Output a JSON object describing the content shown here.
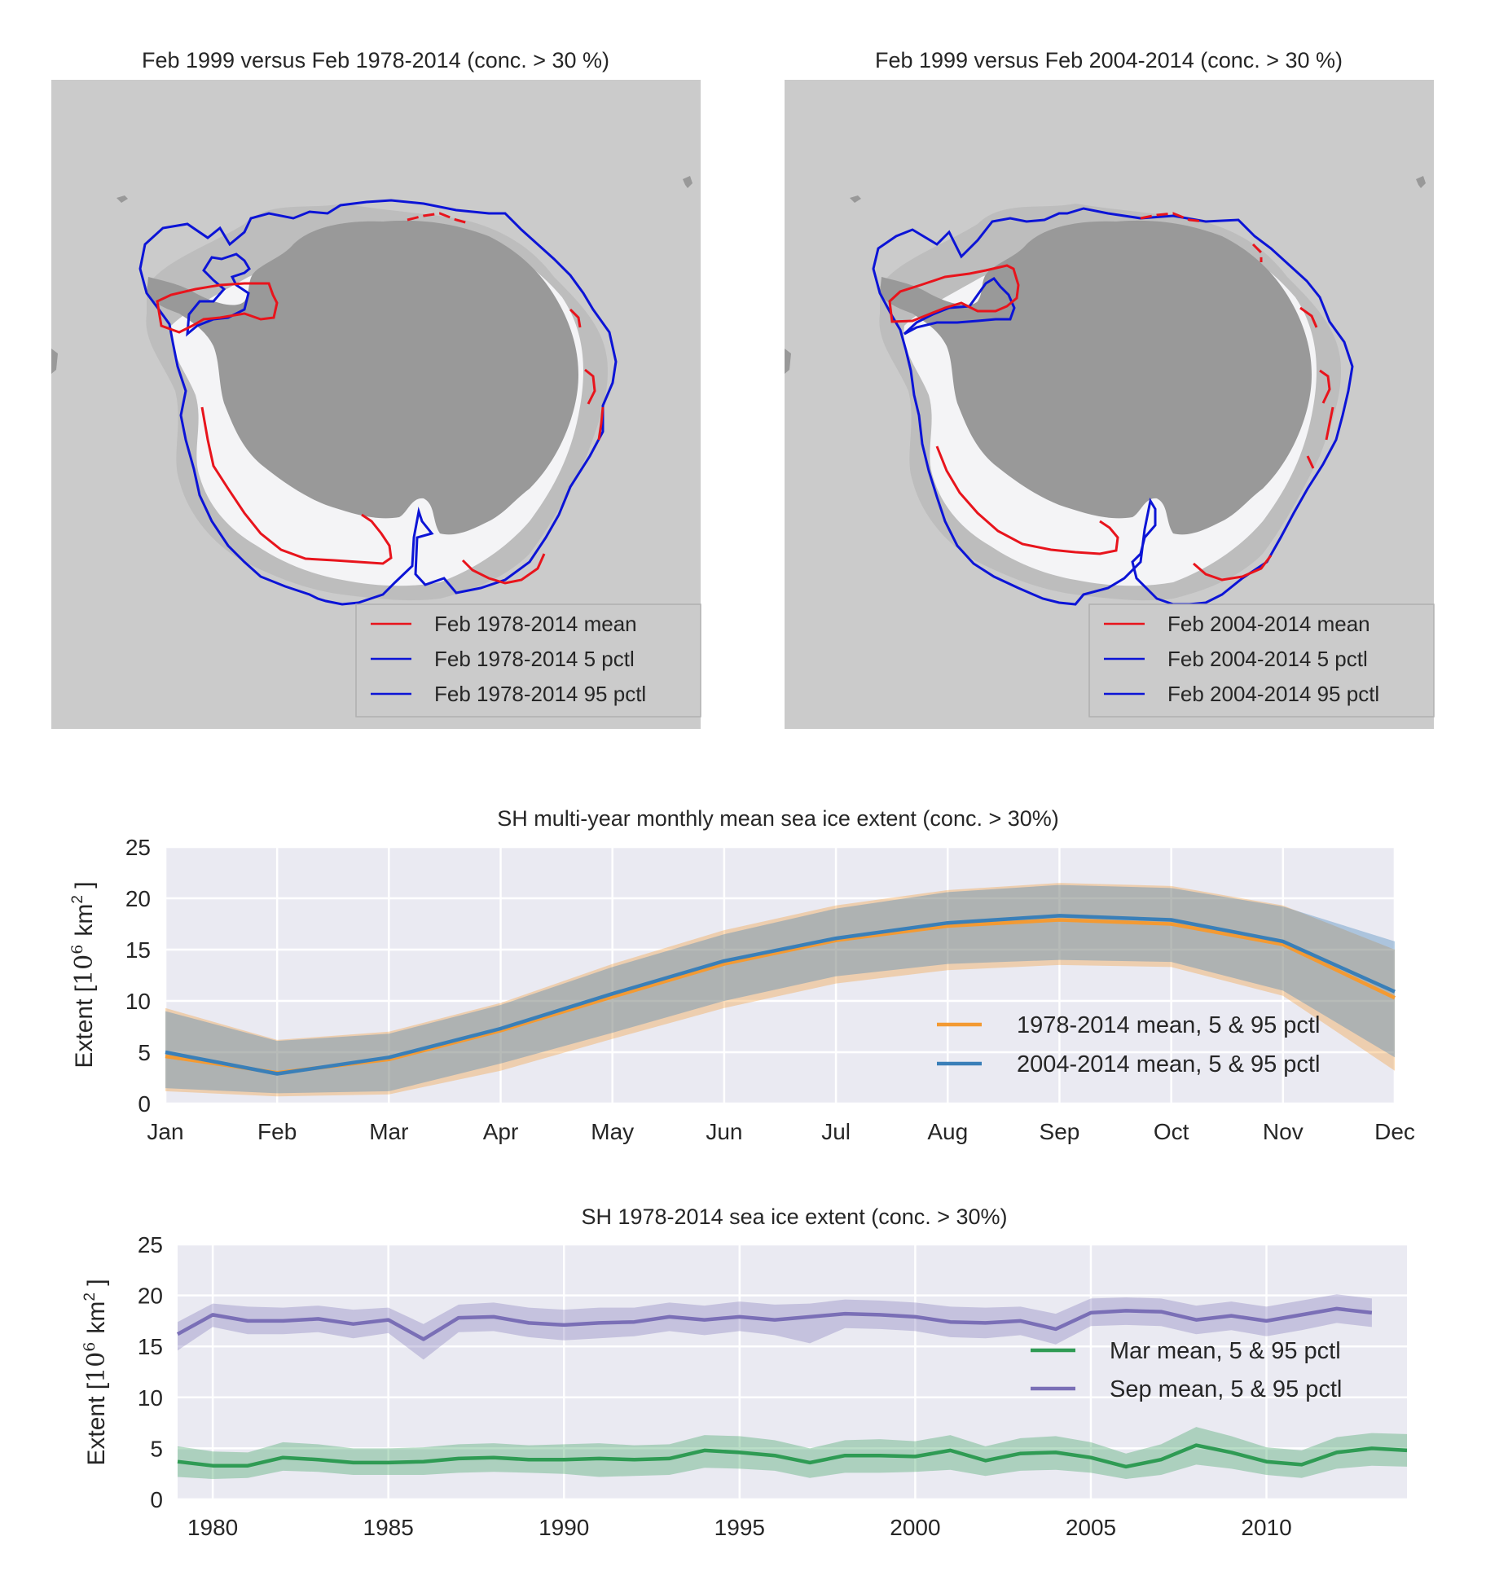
{
  "colors": {
    "ocean": "#cbcbcb",
    "land": "#999999",
    "ice": "#f4f4f6",
    "ice_low": "#bdbdbd",
    "mean_contour": "#e8141c",
    "pctl_contour": "#0c14d6",
    "axes_bg": "#eaeaf2",
    "grid": "#ffffff",
    "orange": "#f39a33",
    "blue": "#3a7fb8",
    "green": "#2f9b54",
    "purple": "#7a6fb6"
  },
  "maps": [
    {
      "title": "Feb 1999 versus Feb 1978-2014 (conc. > 30 %)",
      "legend": [
        {
          "label": "Feb 1978-2014 mean",
          "color": "#e8141c"
        },
        {
          "label": "Feb 1978-2014 5 pctl",
          "color": "#0c14d6"
        },
        {
          "label": "Feb 1978-2014 95 pctl",
          "color": "#0c14d6"
        }
      ]
    },
    {
      "title": "Feb 1999 versus Feb 2004-2014 (conc. > 30 %)",
      "legend": [
        {
          "label": "Feb 2004-2014 mean",
          "color": "#e8141c"
        },
        {
          "label": "Feb 2004-2014 5 pctl",
          "color": "#0c14d6"
        },
        {
          "label": "Feb 2004-2014 95 pctl",
          "color": "#0c14d6"
        }
      ]
    }
  ],
  "chart_data": [
    {
      "type": "area",
      "title": "SH multi-year monthly mean sea ice extent (conc. > 30%)",
      "ylabel": "Extent [10^6 km^2 ]",
      "ylabel_parts": {
        "prefix": "Extent [",
        "base": "10",
        "exp1": "6",
        "unit": "km",
        "exp2": "2",
        "suffix": " ]"
      },
      "ylim": [
        0,
        25
      ],
      "yticks": [
        0,
        5,
        10,
        15,
        20,
        25
      ],
      "categories": [
        "Jan",
        "Feb",
        "Mar",
        "Apr",
        "May",
        "Jun",
        "Jul",
        "Aug",
        "Sep",
        "Oct",
        "Nov",
        "Dec"
      ],
      "grid": true,
      "legend_position": "lower-right",
      "series": [
        {
          "name": "1978-2014 mean, 5 & 95 pctl",
          "color": "#f39a33",
          "mean": [
            4.6,
            3.0,
            4.3,
            7.1,
            10.4,
            13.6,
            15.9,
            17.3,
            17.9,
            17.5,
            15.5,
            10.3
          ],
          "p5": [
            1.2,
            0.7,
            0.9,
            3.2,
            6.3,
            9.3,
            11.7,
            13.0,
            13.5,
            13.3,
            10.5,
            3.2
          ],
          "p95": [
            9.3,
            6.2,
            7.0,
            9.8,
            13.6,
            16.9,
            19.3,
            20.8,
            21.5,
            21.2,
            19.3,
            15.0
          ]
        },
        {
          "name": "2004-2014 mean, 5 & 95 pctl",
          "color": "#3a7fb8",
          "mean": [
            5.0,
            2.9,
            4.5,
            7.3,
            10.7,
            13.9,
            16.1,
            17.6,
            18.3,
            17.9,
            15.8,
            10.9
          ],
          "p5": [
            1.5,
            1.0,
            1.2,
            3.9,
            6.9,
            10.0,
            12.4,
            13.6,
            14.0,
            13.8,
            11.0,
            4.5
          ],
          "p95": [
            9.0,
            6.1,
            6.8,
            9.6,
            13.3,
            16.5,
            19.0,
            20.6,
            21.3,
            21.0,
            19.2,
            15.8
          ]
        }
      ]
    },
    {
      "type": "area",
      "title": "SH 1978-2014 sea ice extent (conc. > 30%)",
      "ylabel": "Extent [10^6 km^2 ]",
      "ylabel_parts": {
        "prefix": "Extent [",
        "base": "10",
        "exp1": "6",
        "unit": "km",
        "exp2": "2",
        "suffix": " ]"
      },
      "ylim": [
        0,
        25
      ],
      "yticks": [
        0,
        5,
        10,
        15,
        20,
        25
      ],
      "xlim": [
        1979,
        2014
      ],
      "xticks": [
        1980,
        1985,
        1990,
        1995,
        2000,
        2005,
        2010
      ],
      "grid": true,
      "legend_position": "right",
      "series": [
        {
          "name": "Mar mean, 5 & 95 pctl",
          "color": "#2f9b54",
          "x": [
            1979,
            1980,
            1981,
            1982,
            1983,
            1984,
            1985,
            1986,
            1987,
            1988,
            1989,
            1990,
            1991,
            1992,
            1993,
            1994,
            1995,
            1996,
            1997,
            1998,
            1999,
            2000,
            2001,
            2002,
            2003,
            2004,
            2005,
            2006,
            2007,
            2008,
            2009,
            2010,
            2011,
            2012,
            2013,
            2014
          ],
          "mean": [
            3.7,
            3.3,
            3.3,
            4.1,
            3.9,
            3.6,
            3.6,
            3.7,
            4.0,
            4.1,
            3.9,
            3.9,
            4.0,
            3.9,
            4.0,
            4.8,
            4.6,
            4.3,
            3.6,
            4.3,
            4.3,
            4.2,
            4.8,
            3.8,
            4.5,
            4.6,
            4.1,
            3.2,
            3.9,
            5.3,
            4.6,
            3.7,
            3.4,
            4.6,
            5.0,
            4.8
          ],
          "p5": [
            2.2,
            2.0,
            2.1,
            2.8,
            2.7,
            2.4,
            2.4,
            2.4,
            2.6,
            2.7,
            2.6,
            2.5,
            2.2,
            2.3,
            2.4,
            3.1,
            3.0,
            2.8,
            2.1,
            2.6,
            2.6,
            2.7,
            2.9,
            2.3,
            2.8,
            2.9,
            2.6,
            2.0,
            2.4,
            3.4,
            3.0,
            2.4,
            2.1,
            3.0,
            3.3,
            3.2
          ],
          "p95": [
            5.2,
            4.7,
            4.6,
            5.6,
            5.4,
            5.0,
            5.0,
            5.1,
            5.4,
            5.5,
            5.3,
            5.4,
            5.5,
            5.3,
            5.4,
            6.3,
            6.2,
            5.8,
            5.0,
            5.8,
            5.9,
            5.7,
            6.3,
            5.2,
            6.0,
            6.2,
            5.6,
            4.5,
            5.4,
            7.1,
            6.2,
            5.1,
            4.8,
            6.1,
            6.5,
            6.4
          ]
        },
        {
          "name": "Sep mean, 5 & 95 pctl",
          "color": "#7a6fb6",
          "x": [
            1979,
            1980,
            1981,
            1982,
            1983,
            1984,
            1985,
            1986,
            1987,
            1988,
            1989,
            1990,
            1991,
            1992,
            1993,
            1994,
            1995,
            1996,
            1997,
            1998,
            1999,
            2000,
            2001,
            2002,
            2003,
            2004,
            2005,
            2006,
            2007,
            2008,
            2009,
            2010,
            2011,
            2012,
            2013
          ],
          "mean": [
            16.2,
            18.1,
            17.5,
            17.5,
            17.7,
            17.2,
            17.6,
            15.7,
            17.8,
            17.9,
            17.3,
            17.1,
            17.3,
            17.4,
            17.9,
            17.6,
            17.9,
            17.6,
            17.9,
            18.2,
            18.1,
            17.9,
            17.4,
            17.3,
            17.5,
            16.7,
            18.3,
            18.5,
            18.4,
            17.6,
            18.0,
            17.5,
            18.1,
            18.7,
            18.3
          ],
          "p5": [
            14.6,
            16.9,
            16.2,
            16.2,
            16.4,
            15.8,
            16.3,
            13.7,
            16.4,
            16.5,
            15.9,
            15.6,
            15.8,
            16.0,
            16.5,
            16.1,
            16.5,
            16.1,
            15.3,
            16.8,
            16.7,
            16.5,
            15.9,
            15.8,
            16.1,
            15.2,
            17.0,
            17.1,
            17.0,
            16.2,
            16.6,
            16.0,
            16.6,
            17.3,
            16.9
          ],
          "p95": [
            17.4,
            19.2,
            18.9,
            18.8,
            19.0,
            18.6,
            18.8,
            17.2,
            19.1,
            19.3,
            18.8,
            18.6,
            18.8,
            18.8,
            19.3,
            19.0,
            19.4,
            19.1,
            19.2,
            19.6,
            19.5,
            19.3,
            18.9,
            18.8,
            18.9,
            18.2,
            19.7,
            19.8,
            19.7,
            19.0,
            19.4,
            18.9,
            19.5,
            20.1,
            19.7
          ]
        }
      ]
    }
  ]
}
